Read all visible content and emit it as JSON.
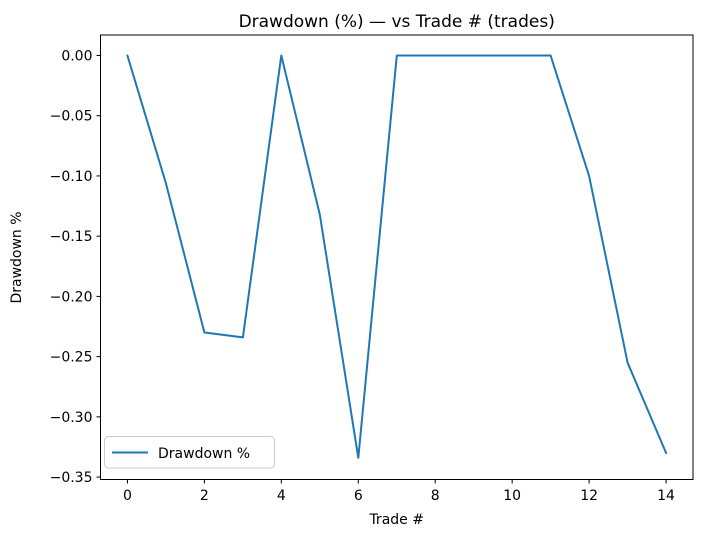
{
  "figure": {
    "background": "#ffffff",
    "text_color": "#000000",
    "spine_color": "#000000"
  },
  "chart_data": {
    "type": "line",
    "title": "Drawdown (%) — vs Trade # (trades)",
    "xlabel": "Trade #",
    "ylabel": "Drawdown %",
    "grid": false,
    "xlim": [
      -0.7,
      14.7
    ],
    "ylim": [
      -0.352,
      0.017
    ],
    "x_ticks": [
      0,
      2,
      4,
      6,
      8,
      10,
      12,
      14
    ],
    "y_ticks": [
      0.0,
      -0.05,
      -0.1,
      -0.15,
      -0.2,
      -0.25,
      -0.3,
      -0.35
    ],
    "legend": {
      "position": "lower left",
      "entries": [
        "Drawdown %"
      ]
    },
    "series": [
      {
        "name": "Drawdown %",
        "color": "#1f77b4",
        "x": [
          0,
          1,
          2,
          3,
          4,
          5,
          6,
          7,
          8,
          9,
          10,
          11,
          12,
          13,
          14
        ],
        "y": [
          0.0,
          -0.106,
          -0.23,
          -0.234,
          0.0,
          -0.132,
          -0.334,
          0.0,
          0.0,
          0.0,
          0.0,
          0.0,
          -0.1,
          -0.255,
          -0.33
        ]
      }
    ]
  }
}
